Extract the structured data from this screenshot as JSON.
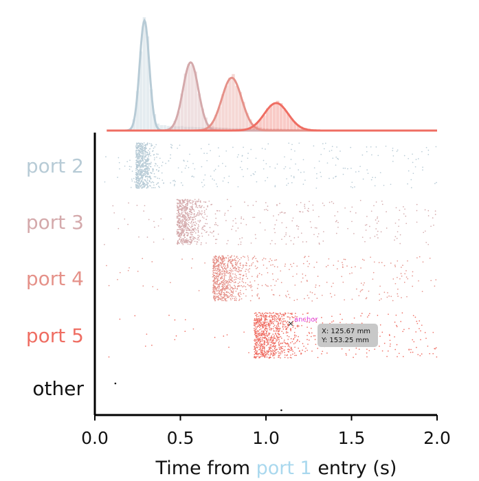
{
  "chart_data": {
    "type": "scatter",
    "subtype": "raster with marginal density",
    "xlim": [
      0,
      2.0
    ],
    "xticks": [
      0.0,
      0.5,
      1.0,
      1.5,
      2.0
    ],
    "xtick_labels": [
      "0.0",
      "0.5",
      "1.0",
      "1.5",
      "2.0"
    ],
    "xlabel": {
      "prefix": "Time from ",
      "highlight": "port 1",
      "suffix": " entry (s)",
      "highlight_color": "#a9d8ee"
    },
    "rows": [
      {
        "label": "port 2",
        "color": "#b7cbd6",
        "onset": 0.24,
        "peak": 0.29,
        "sd": 0.035,
        "dense_end": 0.37,
        "tail_end": 2.0,
        "n": 900
      },
      {
        "label": "port 3",
        "color": "#d4a9ab",
        "onset": 0.48,
        "peak": 0.56,
        "sd": 0.055,
        "dense_end": 0.7,
        "tail_end": 2.0,
        "n": 850
      },
      {
        "label": "port 4",
        "color": "#e59189",
        "onset": 0.69,
        "peak": 0.8,
        "sd": 0.07,
        "dense_end": 0.95,
        "tail_end": 2.0,
        "n": 900
      },
      {
        "label": "port 5",
        "color": "#ef6d62",
        "onset": 0.93,
        "peak": 1.06,
        "sd": 0.085,
        "dense_end": 1.2,
        "tail_end": 2.0,
        "n": 1000
      },
      {
        "label": "other",
        "color": "#111111",
        "points": [
          0.12,
          1.09
        ]
      }
    ],
    "marginal": {
      "type": "histogram+density",
      "peaks": [
        0.29,
        0.56,
        0.8,
        1.06
      ]
    },
    "grid": false,
    "legend": "none"
  },
  "annotation": {
    "anchor_label": "anchor",
    "tooltip_x": "X: 125.67 mm",
    "tooltip_y": "Y: 153.25 mm"
  }
}
